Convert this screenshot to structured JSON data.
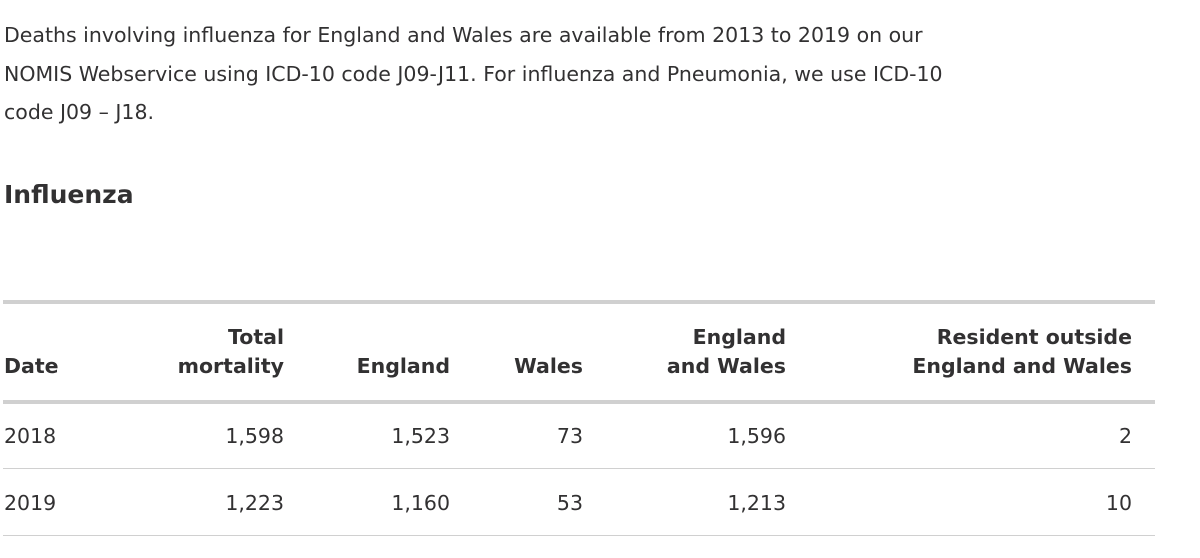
{
  "intro": "Deaths involving influenza for England and Wales are available from 2013 to 2019 on our NOMIS Webservice using ICD-10 code J09-J11. For influenza and Pneumonia, we use ICD-10 code J09 – J18.",
  "heading": "Influenza",
  "table": {
    "header": [
      "Date",
      "Total mortality",
      "England",
      "Wales",
      "England and Wales",
      "Resident outside England and Wales"
    ],
    "rows": [
      [
        "2018",
        "1,598",
        "1,523",
        "73",
        "1,596",
        "2"
      ],
      [
        "2019",
        "1,223",
        "1,160",
        "53",
        "1,213",
        "10"
      ]
    ]
  }
}
